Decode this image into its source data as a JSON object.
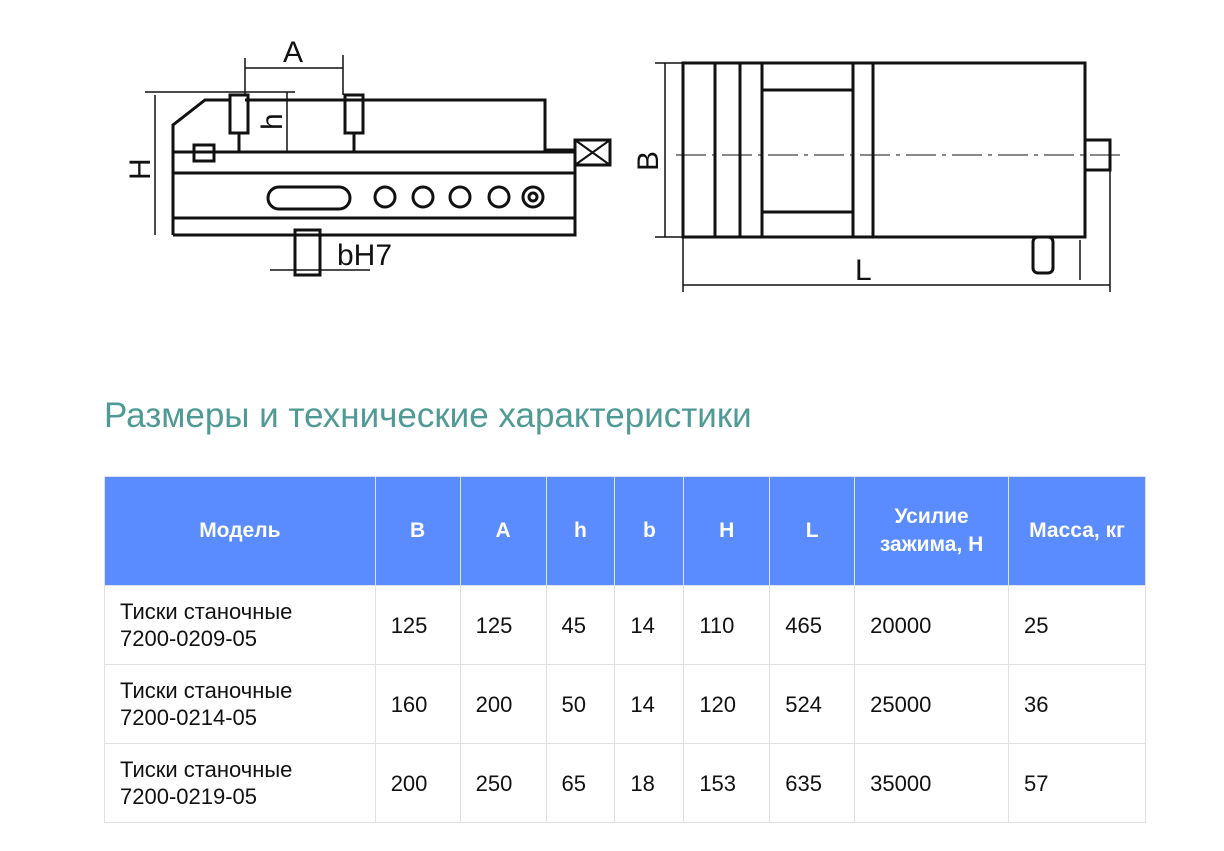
{
  "drawing": {
    "side_labels": {
      "A": "A",
      "h": "h",
      "H": "H",
      "bH7": "bH7"
    },
    "top_labels": {
      "B": "B",
      "L": "L"
    }
  },
  "title": "Размеры и технические характеристики",
  "table": {
    "headers": [
      "Модель",
      "B",
      "A",
      "h",
      "b",
      "H",
      "L",
      "Усилие зажима, Н",
      "Масса, кг"
    ],
    "rows": [
      [
        "Тиски станочные 7200-0209-05",
        "125",
        "125",
        "45",
        "14",
        "110",
        "465",
        "20000",
        "25"
      ],
      [
        "Тиски станочные 7200-0214-05",
        "160",
        "200",
        "50",
        "14",
        "120",
        "524",
        "25000",
        "36"
      ],
      [
        "Тиски станочные 7200-0219-05",
        "200",
        "250",
        "65",
        "18",
        "153",
        "635",
        "35000",
        "57"
      ]
    ]
  },
  "colors": {
    "header": "#5b8cff",
    "title": "#4f9a94"
  }
}
